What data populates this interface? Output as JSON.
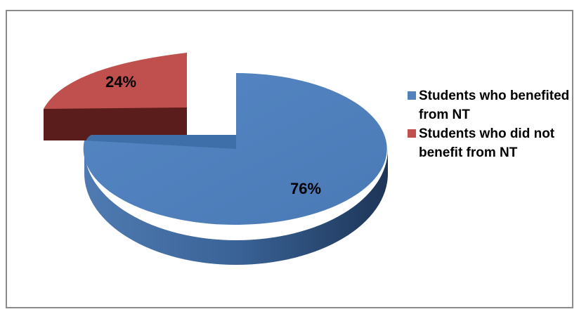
{
  "chart_data": {
    "type": "pie",
    "title": "",
    "slices": [
      {
        "name": "Students who benefited from NT",
        "value": 76,
        "label": "76%",
        "color": "#4f81bd"
      },
      {
        "name": "Students who did not benefit from NT",
        "value": 24,
        "label": "24%",
        "color": "#c0504d"
      }
    ],
    "legend_position": "right",
    "exploded_slice": "Students who did not benefit from NT",
    "three_d": true
  }
}
